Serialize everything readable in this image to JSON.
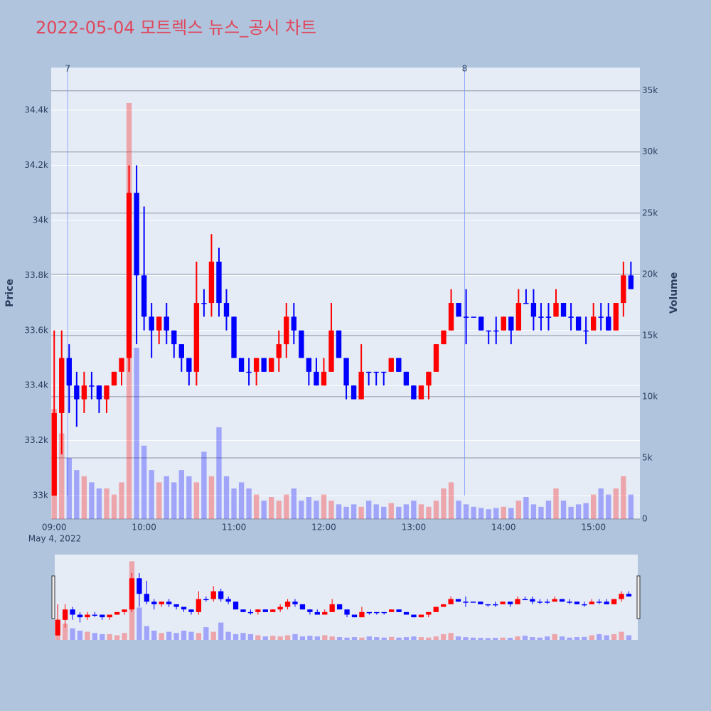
{
  "chart_data": {
    "type": "candlestick",
    "title": "2022-05-04 모트렉스 뉴스_공시 차트",
    "x_subtitle": "May 4, 2022",
    "y_label": "Price",
    "y2_label": "Volume",
    "x": [
      "09:00",
      "09:05",
      "09:10",
      "09:15",
      "09:20",
      "09:25",
      "09:30",
      "09:35",
      "09:40",
      "09:45",
      "09:50",
      "09:55",
      "10:00",
      "10:05",
      "10:10",
      "10:15",
      "10:20",
      "10:25",
      "10:30",
      "10:35",
      "10:40",
      "10:45",
      "10:50",
      "10:55",
      "11:00",
      "11:05",
      "11:10",
      "11:15",
      "11:20",
      "11:25",
      "11:30",
      "11:35",
      "11:40",
      "11:45",
      "11:50",
      "11:55",
      "12:00",
      "12:05",
      "12:10",
      "12:15",
      "12:20",
      "12:25",
      "12:30",
      "12:35",
      "12:40",
      "12:45",
      "12:50",
      "12:55",
      "13:00",
      "13:05",
      "13:10",
      "13:15",
      "13:20",
      "13:25",
      "13:30",
      "13:35",
      "13:40",
      "13:45",
      "13:50",
      "13:55",
      "14:00",
      "14:05",
      "14:10",
      "14:15",
      "14:20",
      "14:25",
      "14:30",
      "14:35",
      "14:40",
      "14:45",
      "14:50",
      "14:55",
      "15:00",
      "15:05",
      "15:10",
      "15:15",
      "15:20",
      "15:25"
    ],
    "open": [
      33000,
      33300,
      33500,
      33400,
      33350,
      33400,
      33400,
      33350,
      33400,
      33450,
      33500,
      34100,
      33800,
      33650,
      33600,
      33650,
      33600,
      33550,
      33500,
      33450,
      33700,
      33700,
      33850,
      33700,
      33650,
      33500,
      33450,
      33450,
      33500,
      33450,
      33500,
      33550,
      33650,
      33600,
      33500,
      33450,
      33400,
      33450,
      33600,
      33500,
      33400,
      33350,
      33450,
      33450,
      33450,
      33450,
      33500,
      33450,
      33400,
      33350,
      33400,
      33450,
      33550,
      33600,
      33700,
      33650,
      33650,
      33650,
      33600,
      33600,
      33600,
      33650,
      33600,
      33700,
      33700,
      33650,
      33650,
      33650,
      33700,
      33650,
      33650,
      33600,
      33600,
      33650,
      33650,
      33600,
      33700,
      33800
    ],
    "high": [
      33600,
      33600,
      33550,
      33450,
      33450,
      33450,
      33400,
      33400,
      33450,
      33500,
      34200,
      34200,
      34050,
      33700,
      33650,
      33700,
      33600,
      33550,
      33500,
      33850,
      33750,
      33950,
      33900,
      33750,
      33650,
      33500,
      33500,
      33500,
      33500,
      33500,
      33600,
      33700,
      33700,
      33600,
      33500,
      33500,
      33500,
      33700,
      33600,
      33500,
      33400,
      33550,
      33450,
      33450,
      33450,
      33500,
      33500,
      33450,
      33400,
      33400,
      33450,
      33550,
      33600,
      33750,
      33700,
      33750,
      33650,
      33650,
      33600,
      33650,
      33650,
      33650,
      33750,
      33750,
      33750,
      33700,
      33700,
      33750,
      33700,
      33700,
      33650,
      33650,
      33700,
      33700,
      33700,
      33700,
      33850,
      33850
    ],
    "low": [
      33000,
      33150,
      33300,
      33250,
      33300,
      33350,
      33300,
      33300,
      33400,
      33400,
      33450,
      33550,
      33600,
      33500,
      33550,
      33550,
      33500,
      33450,
      33400,
      33400,
      33650,
      33650,
      33650,
      33600,
      33500,
      33450,
      33400,
      33400,
      33450,
      33450,
      33450,
      33500,
      33550,
      33500,
      33400,
      33400,
      33400,
      33450,
      33500,
      33350,
      33350,
      33350,
      33400,
      33400,
      33400,
      33450,
      33450,
      33400,
      33350,
      33350,
      33350,
      33450,
      33550,
      33600,
      33650,
      33550,
      33650,
      33600,
      33550,
      33550,
      33600,
      33550,
      33600,
      33700,
      33600,
      33600,
      33600,
      33650,
      33650,
      33600,
      33600,
      33550,
      33600,
      33600,
      33600,
      33600,
      33650,
      33750
    ],
    "close": [
      33300,
      33500,
      33400,
      33350,
      33400,
      33400,
      33350,
      33400,
      33450,
      33500,
      34100,
      33800,
      33650,
      33600,
      33650,
      33600,
      33550,
      33500,
      33450,
      33700,
      33700,
      33850,
      33700,
      33650,
      33500,
      33450,
      33450,
      33500,
      33450,
      33500,
      33550,
      33650,
      33600,
      33500,
      33450,
      33400,
      33450,
      33600,
      33500,
      33400,
      33350,
      33450,
      33450,
      33450,
      33450,
      33500,
      33450,
      33400,
      33350,
      33400,
      33450,
      33550,
      33600,
      33700,
      33650,
      33650,
      33650,
      33600,
      33600,
      33600,
      33650,
      33600,
      33700,
      33700,
      33650,
      33650,
      33650,
      33700,
      33650,
      33650,
      33600,
      33600,
      33650,
      33650,
      33600,
      33700,
      33800,
      33750
    ],
    "volume": [
      9000,
      7000,
      5000,
      4000,
      3500,
      3000,
      2500,
      2500,
      2000,
      3000,
      34000,
      14000,
      6000,
      4000,
      3000,
      3500,
      3000,
      4000,
      3500,
      3000,
      5500,
      3500,
      7500,
      3500,
      2500,
      3000,
      2500,
      2000,
      1500,
      1800,
      1500,
      2000,
      2500,
      1500,
      1800,
      1500,
      2000,
      1500,
      1200,
      1000,
      1200,
      1000,
      1500,
      1200,
      1000,
      1300,
      1000,
      1200,
      1500,
      1200,
      1000,
      1500,
      2500,
      3000,
      1500,
      1200,
      1000,
      900,
      800,
      900,
      1000,
      900,
      1500,
      1800,
      1200,
      1000,
      1500,
      2500,
      1500,
      1000,
      1200,
      1300,
      2000,
      2500,
      2000,
      2500,
      3500,
      2000
    ],
    "increasing_color": "#ff0000",
    "decreasing_color": "#0000ff",
    "markers": [
      {
        "x": "09:09",
        "label": "7"
      },
      {
        "x": "13:34",
        "label": "8"
      }
    ],
    "xlim": [
      "08:58",
      "15:31"
    ],
    "xticks": [
      "09:00",
      "10:00",
      "11:00",
      "12:00",
      "13:00",
      "14:00",
      "15:00"
    ],
    "ylim": [
      32915,
      34555
    ],
    "yticks": [
      {
        "value": 33000,
        "label": "33k"
      },
      {
        "value": 33200,
        "label": "33.2k"
      },
      {
        "value": 33400,
        "label": "33.4k"
      },
      {
        "value": 33600,
        "label": "33.6k"
      },
      {
        "value": 33800,
        "label": "33.8k"
      },
      {
        "value": 34000,
        "label": "34k"
      },
      {
        "value": 34200,
        "label": "34.2k"
      },
      {
        "value": 34400,
        "label": "34.4k"
      }
    ],
    "y2lim": [
      0,
      36900
    ],
    "y2ticks": [
      0,
      {
        "value": 5000,
        "label": "5k"
      },
      {
        "value": 10000,
        "label": "10k"
      },
      {
        "value": 15000,
        "label": "15k"
      },
      {
        "value": 20000,
        "label": "20k"
      },
      {
        "value": 25000,
        "label": "25k"
      },
      {
        "value": 30000,
        "label": "30k"
      },
      {
        "value": 35000,
        "label": "35k"
      }
    ],
    "rangeslider": true
  }
}
